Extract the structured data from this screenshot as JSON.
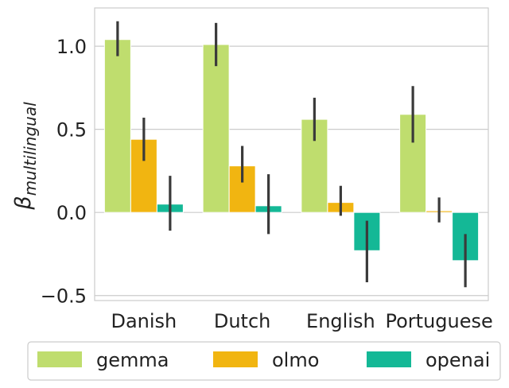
{
  "chart_data": {
    "type": "bar",
    "categories": [
      "Danish",
      "Dutch",
      "English",
      "Portuguese"
    ],
    "ylabel_symbol": "β",
    "ylabel_subscript": "multilingual",
    "xlabel": "",
    "ylim": [
      -0.53,
      1.23
    ],
    "yticks": [
      -0.5,
      0.0,
      0.5,
      1.0
    ],
    "ytick_labels": [
      "−0.5",
      "0.0",
      "0.5",
      "1.0"
    ],
    "grid": "horizontal",
    "legend_position": "bottom",
    "colors": {
      "gemma": "#bfdd6e",
      "olmo": "#f1b511",
      "openai": "#14b896"
    },
    "series": [
      {
        "name": "gemma",
        "values": [
          1.04,
          1.01,
          0.56,
          0.59
        ],
        "err_low": [
          0.94,
          0.88,
          0.43,
          0.42
        ],
        "err_high": [
          1.15,
          1.14,
          0.69,
          0.76
        ]
      },
      {
        "name": "olmo",
        "values": [
          0.44,
          0.28,
          0.06,
          0.01
        ],
        "err_low": [
          0.31,
          0.18,
          -0.02,
          -0.06
        ],
        "err_high": [
          0.57,
          0.4,
          0.16,
          0.09
        ]
      },
      {
        "name": "openai",
        "values": [
          0.05,
          0.04,
          -0.23,
          -0.29
        ],
        "err_low": [
          -0.11,
          -0.13,
          -0.42,
          -0.45
        ],
        "err_high": [
          0.22,
          0.23,
          -0.05,
          -0.13
        ]
      }
    ]
  }
}
